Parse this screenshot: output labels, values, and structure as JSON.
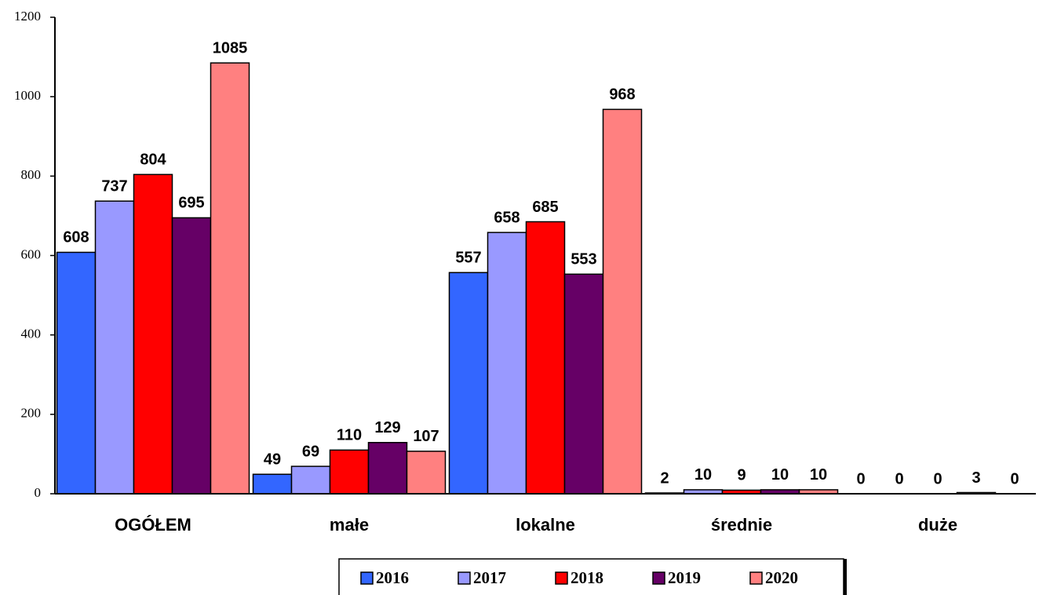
{
  "chart_data": {
    "type": "bar",
    "categories": [
      "OGÓŁEM",
      "małe",
      "lokalne",
      "średnie",
      "duże"
    ],
    "series": [
      {
        "name": "2016",
        "color": "#3366ff",
        "values": [
          608,
          49,
          557,
          2,
          0
        ]
      },
      {
        "name": "2017",
        "color": "#9999ff",
        "values": [
          737,
          69,
          658,
          10,
          0
        ]
      },
      {
        "name": "2018",
        "color": "#ff0000",
        "values": [
          804,
          110,
          685,
          9,
          0
        ]
      },
      {
        "name": "2019",
        "color": "#660066",
        "values": [
          695,
          129,
          553,
          10,
          3
        ]
      },
      {
        "name": "2020",
        "color": "#ff8080",
        "values": [
          1085,
          107,
          968,
          10,
          0
        ]
      }
    ],
    "ylim": [
      0,
      1200
    ],
    "yticks": [
      0,
      200,
      400,
      600,
      800,
      1000,
      1200
    ],
    "legend": "bottom"
  }
}
